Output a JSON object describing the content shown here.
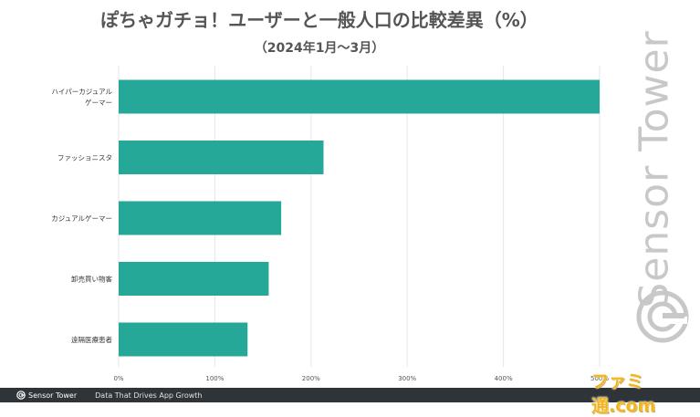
{
  "title": "ぽちゃガチョ！ユーザーと一般人口の比較差異（%）",
  "subtitle": "（2024年1月〜3月）",
  "chart_data": {
    "type": "bar",
    "orientation": "horizontal",
    "categories": [
      "ハイパーカジュアル|ゲーマー",
      "ファッショニスタ",
      "カジュアルゲーマー",
      "卸売買い物客",
      "遠隔医療患者"
    ],
    "values": [
      500,
      213,
      169,
      156,
      134
    ],
    "xlim": [
      0,
      500
    ],
    "xticks": [
      "0%",
      "100%",
      "200%",
      "300%",
      "400%",
      "500%"
    ],
    "xtick_values": [
      0,
      100,
      200,
      300,
      400,
      500
    ],
    "bar_color": "#25a898",
    "grid": true,
    "legend": "none",
    "xlabel": "",
    "ylabel": ""
  },
  "watermark": {
    "text": "Sensor Tower"
  },
  "footer": {
    "logo_text": "Sensor Tower",
    "tagline": "Data That Drives App Growth"
  },
  "publisher_logo": "ファミ通.com",
  "colors": {
    "footer_bg": "#2f3439",
    "grid": "#e6e6e6",
    "watermark": "#c8c8c8",
    "publisher": "#f3b51c"
  }
}
